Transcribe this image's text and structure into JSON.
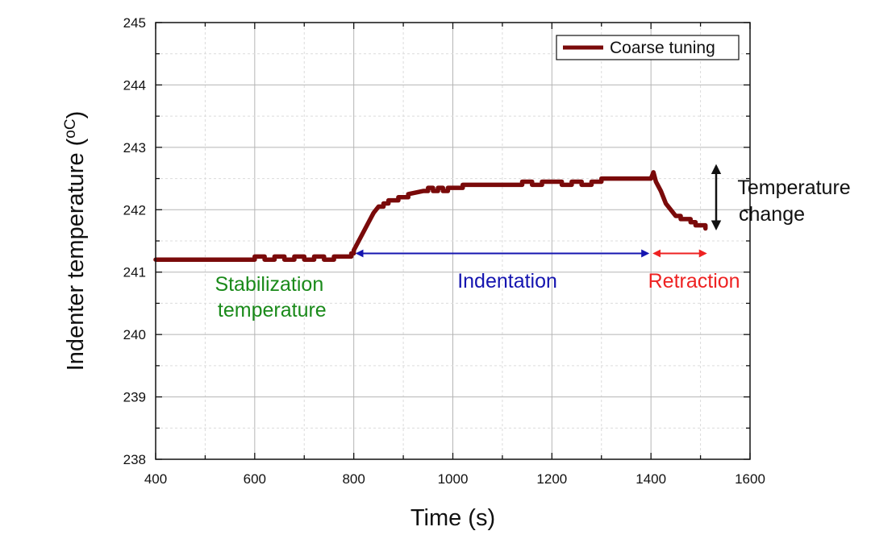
{
  "chart_data": {
    "type": "line",
    "xlabel": "Time (s)",
    "ylabel": "Indenter temperature (",
    "ylabel_unit": "oC",
    "ylabel_end": ")",
    "xlim": [
      400,
      1600
    ],
    "ylim": [
      238,
      245
    ],
    "x_ticks": [
      400,
      600,
      800,
      1000,
      1200,
      1400,
      1600
    ],
    "y_ticks": [
      238,
      239,
      240,
      241,
      242,
      243,
      244,
      245
    ],
    "x_tick_labels": [
      "400",
      "600",
      "800",
      "1000",
      "1200",
      "1400",
      "1600"
    ],
    "y_tick_labels": [
      "238",
      "239",
      "240",
      "241",
      "242",
      "243",
      "244",
      "245"
    ],
    "grid": true,
    "legend_position": "top-right",
    "series": [
      {
        "name": "Coarse tuning",
        "color": "#7a0a0a",
        "points": [
          [
            400,
            241.2
          ],
          [
            600,
            241.2
          ],
          [
            600,
            241.25
          ],
          [
            620,
            241.2
          ],
          [
            640,
            241.25
          ],
          [
            660,
            241.2
          ],
          [
            680,
            241.25
          ],
          [
            700,
            241.2
          ],
          [
            720,
            241.25
          ],
          [
            740,
            241.2
          ],
          [
            760,
            241.25
          ],
          [
            790,
            241.25
          ],
          [
            795,
            241.3
          ],
          [
            800,
            241.35
          ],
          [
            810,
            241.5
          ],
          [
            820,
            241.65
          ],
          [
            830,
            241.8
          ],
          [
            840,
            241.95
          ],
          [
            850,
            242.05
          ],
          [
            860,
            242.1
          ],
          [
            870,
            242.15
          ],
          [
            890,
            242.2
          ],
          [
            910,
            242.25
          ],
          [
            940,
            242.3
          ],
          [
            950,
            242.35
          ],
          [
            960,
            242.3
          ],
          [
            970,
            242.35
          ],
          [
            980,
            242.3
          ],
          [
            990,
            242.35
          ],
          [
            1000,
            242.35
          ],
          [
            1020,
            242.4
          ],
          [
            1130,
            242.4
          ],
          [
            1140,
            242.45
          ],
          [
            1160,
            242.4
          ],
          [
            1180,
            242.45
          ],
          [
            1200,
            242.45
          ],
          [
            1220,
            242.4
          ],
          [
            1240,
            242.45
          ],
          [
            1260,
            242.4
          ],
          [
            1280,
            242.45
          ],
          [
            1300,
            242.5
          ],
          [
            1400,
            242.5
          ],
          [
            1405,
            242.6
          ],
          [
            1410,
            242.45
          ],
          [
            1420,
            242.3
          ],
          [
            1430,
            242.1
          ],
          [
            1440,
            242.0
          ],
          [
            1450,
            241.9
          ],
          [
            1460,
            241.85
          ],
          [
            1480,
            241.8
          ],
          [
            1490,
            241.75
          ],
          [
            1510,
            241.7
          ]
        ]
      }
    ],
    "annotations": [
      {
        "text_lines": [
          "Stabilization",
          "temperature"
        ],
        "color": "#1a8a1a"
      },
      {
        "text_lines": [
          "Indentation"
        ],
        "color": "#1515b0",
        "arrow_x": [
          800,
          1400
        ],
        "arrow_y": 241.3
      },
      {
        "text_lines": [
          "Retraction"
        ],
        "color": "#ee2222",
        "arrow_x": [
          1400,
          1510
        ],
        "arrow_y": 241.3
      },
      {
        "text_lines": [
          "Temperature",
          "change"
        ],
        "color": "#111111",
        "arrow_y": [
          241.7,
          242.7
        ]
      }
    ]
  }
}
